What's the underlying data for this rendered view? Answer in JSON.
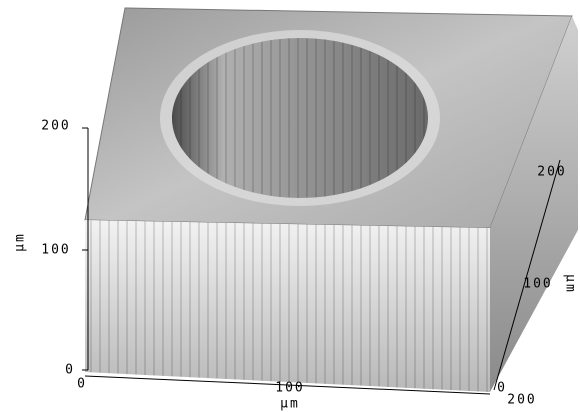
{
  "axes": {
    "vertical": {
      "label": "µm",
      "ticks": [
        "0",
        "100",
        "200"
      ]
    },
    "front": {
      "label": "µm",
      "ticks": [
        "0",
        "100",
        "200"
      ]
    },
    "depth": {
      "label": "µm",
      "ticks": [
        "0",
        "100",
        "200"
      ]
    }
  }
}
